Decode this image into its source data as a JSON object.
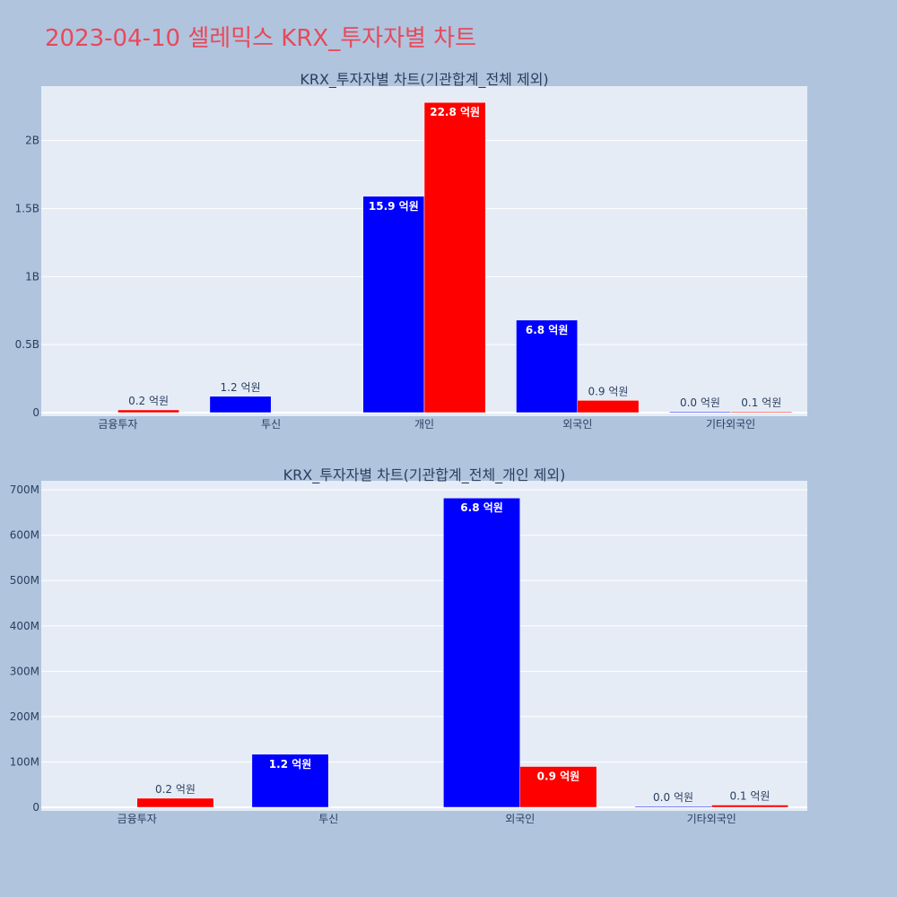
{
  "title": "2023-04-10 셀레믹스 KRX_투자자별 차트",
  "colors": {
    "page_bg": "#b0c4de",
    "plot_bg": "#e5ecf6",
    "title": "#e8495a",
    "buy": "#0000ff",
    "sell": "#ff0000"
  },
  "chart_data": [
    {
      "type": "bar",
      "title": "KRX_투자자별 차트(기관합계_전체 제외)",
      "categories": [
        "금융투자",
        "투신",
        "개인",
        "외국인",
        "기타외국인"
      ],
      "series": [
        {
          "color": "#0000ff",
          "values": [
            0,
            120000000,
            1590000000,
            680000000,
            2000000
          ],
          "labels": [
            "",
            "1.2 억원",
            "15.9 억원",
            "6.8 억원",
            "0.0 억원"
          ]
        },
        {
          "color": "#ff0000",
          "values": [
            20000000,
            0,
            2280000000,
            90000000,
            5000000
          ],
          "labels": [
            "0.2 억원",
            "",
            "22.8 억원",
            "0.9 억원",
            "0.1 억원"
          ]
        }
      ],
      "ylim": [
        0,
        2400000000
      ],
      "yticks": [
        0,
        500000000,
        1000000000,
        1500000000,
        2000000000
      ],
      "ytick_labels": [
        "0",
        "0.5B",
        "1B",
        "1.5B",
        "2B"
      ],
      "xlabel": "",
      "ylabel": "",
      "grid": true,
      "legend": "none"
    },
    {
      "type": "bar",
      "title": "KRX_투자자별 차트(기관합계_전체_개인 제외)",
      "categories": [
        "금융투자",
        "투신",
        "외국인",
        "기타외국인"
      ],
      "series": [
        {
          "color": "#0000ff",
          "values": [
            0,
            117000000,
            682000000,
            2000000
          ],
          "labels": [
            "",
            "1.2 억원",
            "6.8 억원",
            "0.0 억원"
          ]
        },
        {
          "color": "#ff0000",
          "values": [
            20000000,
            0,
            90000000,
            5000000
          ],
          "labels": [
            "0.2 억원",
            "",
            "0.9 억원",
            "0.1 억원"
          ]
        }
      ],
      "ylim": [
        0,
        720000000
      ],
      "yticks": [
        0,
        100000000,
        200000000,
        300000000,
        400000000,
        500000000,
        600000000,
        700000000
      ],
      "ytick_labels": [
        "0",
        "100M",
        "200M",
        "300M",
        "400M",
        "500M",
        "600M",
        "700M"
      ],
      "xlabel": "",
      "ylabel": "",
      "grid": true,
      "legend": "none"
    }
  ]
}
